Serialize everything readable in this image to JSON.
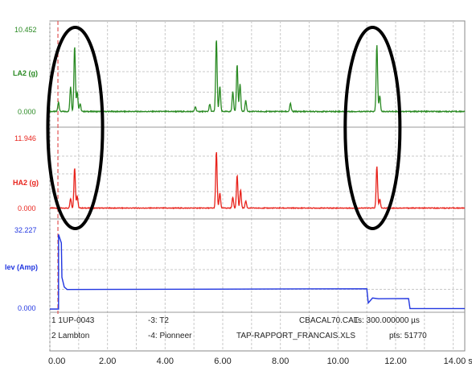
{
  "chart_data": {
    "type": "line",
    "x_unit_label": "sec",
    "x_ticks": [
      "0.00",
      "2.00",
      "4.00",
      "6.00",
      "8.00",
      "10.00",
      "12.00",
      "14.00 sec"
    ],
    "xlim": [
      0,
      14.4
    ],
    "grid": true,
    "cursor_x": 0.28,
    "colors": {
      "LA2": "#2a8a23",
      "HA2": "#e8231c",
      "lev": "#2035e0",
      "grid": "#c9c9c9",
      "cursor": "#e05555",
      "ellipse": "#000000"
    },
    "panels": [
      {
        "name": "LA2 (g)",
        "ymax_label": "10.452",
        "ymin_label": "0.000",
        "ylim": [
          0,
          10.452
        ],
        "color": "#2a8a23",
        "series": {
          "name": "LA2 (g)",
          "baseline": 0.15,
          "peaks": [
            {
              "x": 0.3,
              "y": 1.2
            },
            {
              "x": 0.72,
              "y": 3.2
            },
            {
              "x": 0.86,
              "y": 8.3
            },
            {
              "x": 0.95,
              "y": 2.5
            },
            {
              "x": 1.05,
              "y": 1.0
            },
            {
              "x": 5.05,
              "y": 0.6
            },
            {
              "x": 5.55,
              "y": 0.9
            },
            {
              "x": 5.78,
              "y": 9.2
            },
            {
              "x": 5.9,
              "y": 3.2
            },
            {
              "x": 6.35,
              "y": 2.5
            },
            {
              "x": 6.5,
              "y": 6.0
            },
            {
              "x": 6.6,
              "y": 3.5
            },
            {
              "x": 6.8,
              "y": 1.4
            },
            {
              "x": 8.35,
              "y": 1.0
            },
            {
              "x": 11.35,
              "y": 8.5
            },
            {
              "x": 11.45,
              "y": 2.0
            }
          ]
        }
      },
      {
        "name": "HA2 (g)",
        "ymax_label": "11.946",
        "ymin_label": "0.000",
        "ylim": [
          0,
          11.946
        ],
        "color": "#e8231c",
        "series": {
          "name": "HA2 (g)",
          "baseline": 0.2,
          "peaks": [
            {
              "x": 0.72,
              "y": 1.6
            },
            {
              "x": 0.86,
              "y": 6.8
            },
            {
              "x": 0.95,
              "y": 2.0
            },
            {
              "x": 5.78,
              "y": 9.5
            },
            {
              "x": 5.9,
              "y": 2.5
            },
            {
              "x": 6.35,
              "y": 1.8
            },
            {
              "x": 6.5,
              "y": 5.5
            },
            {
              "x": 6.62,
              "y": 3.0
            },
            {
              "x": 6.8,
              "y": 1.2
            },
            {
              "x": 11.35,
              "y": 7.0
            },
            {
              "x": 11.45,
              "y": 1.5
            }
          ]
        }
      },
      {
        "name": "lev (Amp)",
        "ymax_label": "32.227",
        "ymin_label": "0.000",
        "ylim": [
          0,
          32.227
        ],
        "color": "#2035e0",
        "series": {
          "name": "lev (Amp)",
          "steps": [
            {
              "x": 0.0,
              "y": 0.0
            },
            {
              "x": 0.3,
              "y": 0.0
            },
            {
              "x": 0.3,
              "y": 30.5
            },
            {
              "x": 0.4,
              "y": 27.0
            },
            {
              "x": 0.42,
              "y": 13.0
            },
            {
              "x": 0.5,
              "y": 9.0
            },
            {
              "x": 0.6,
              "y": 8.0
            },
            {
              "x": 11.0,
              "y": 8.3
            },
            {
              "x": 11.05,
              "y": 2.5
            },
            {
              "x": 11.2,
              "y": 4.5
            },
            {
              "x": 11.4,
              "y": 4.2
            },
            {
              "x": 12.45,
              "y": 4.3
            },
            {
              "x": 12.5,
              "y": 0.2
            },
            {
              "x": 14.4,
              "y": 0.2
            }
          ]
        }
      }
    ],
    "annotations": [
      {
        "type": "ellipse",
        "x_center": 0.88,
        "x_halfwidth": 0.95,
        "panels": [
          0,
          1
        ]
      },
      {
        "type": "ellipse",
        "x_center": 11.2,
        "x_halfwidth": 0.95,
        "panels": [
          0,
          1
        ]
      }
    ]
  },
  "info": {
    "line1_left": "1 1UP-0043",
    "line1_mid": "-3: T2",
    "line1_right_a": "CBACAL70.CAL",
    "line1_right_b": "Ts: 300.000000 µs",
    "line2_left": "2 Lambton",
    "line2_mid": "-4: Pionneer",
    "line2_right_a": "TAP-RAPPORT_FRANCAIS.XLS",
    "line2_right_b": "pts: 51770"
  }
}
